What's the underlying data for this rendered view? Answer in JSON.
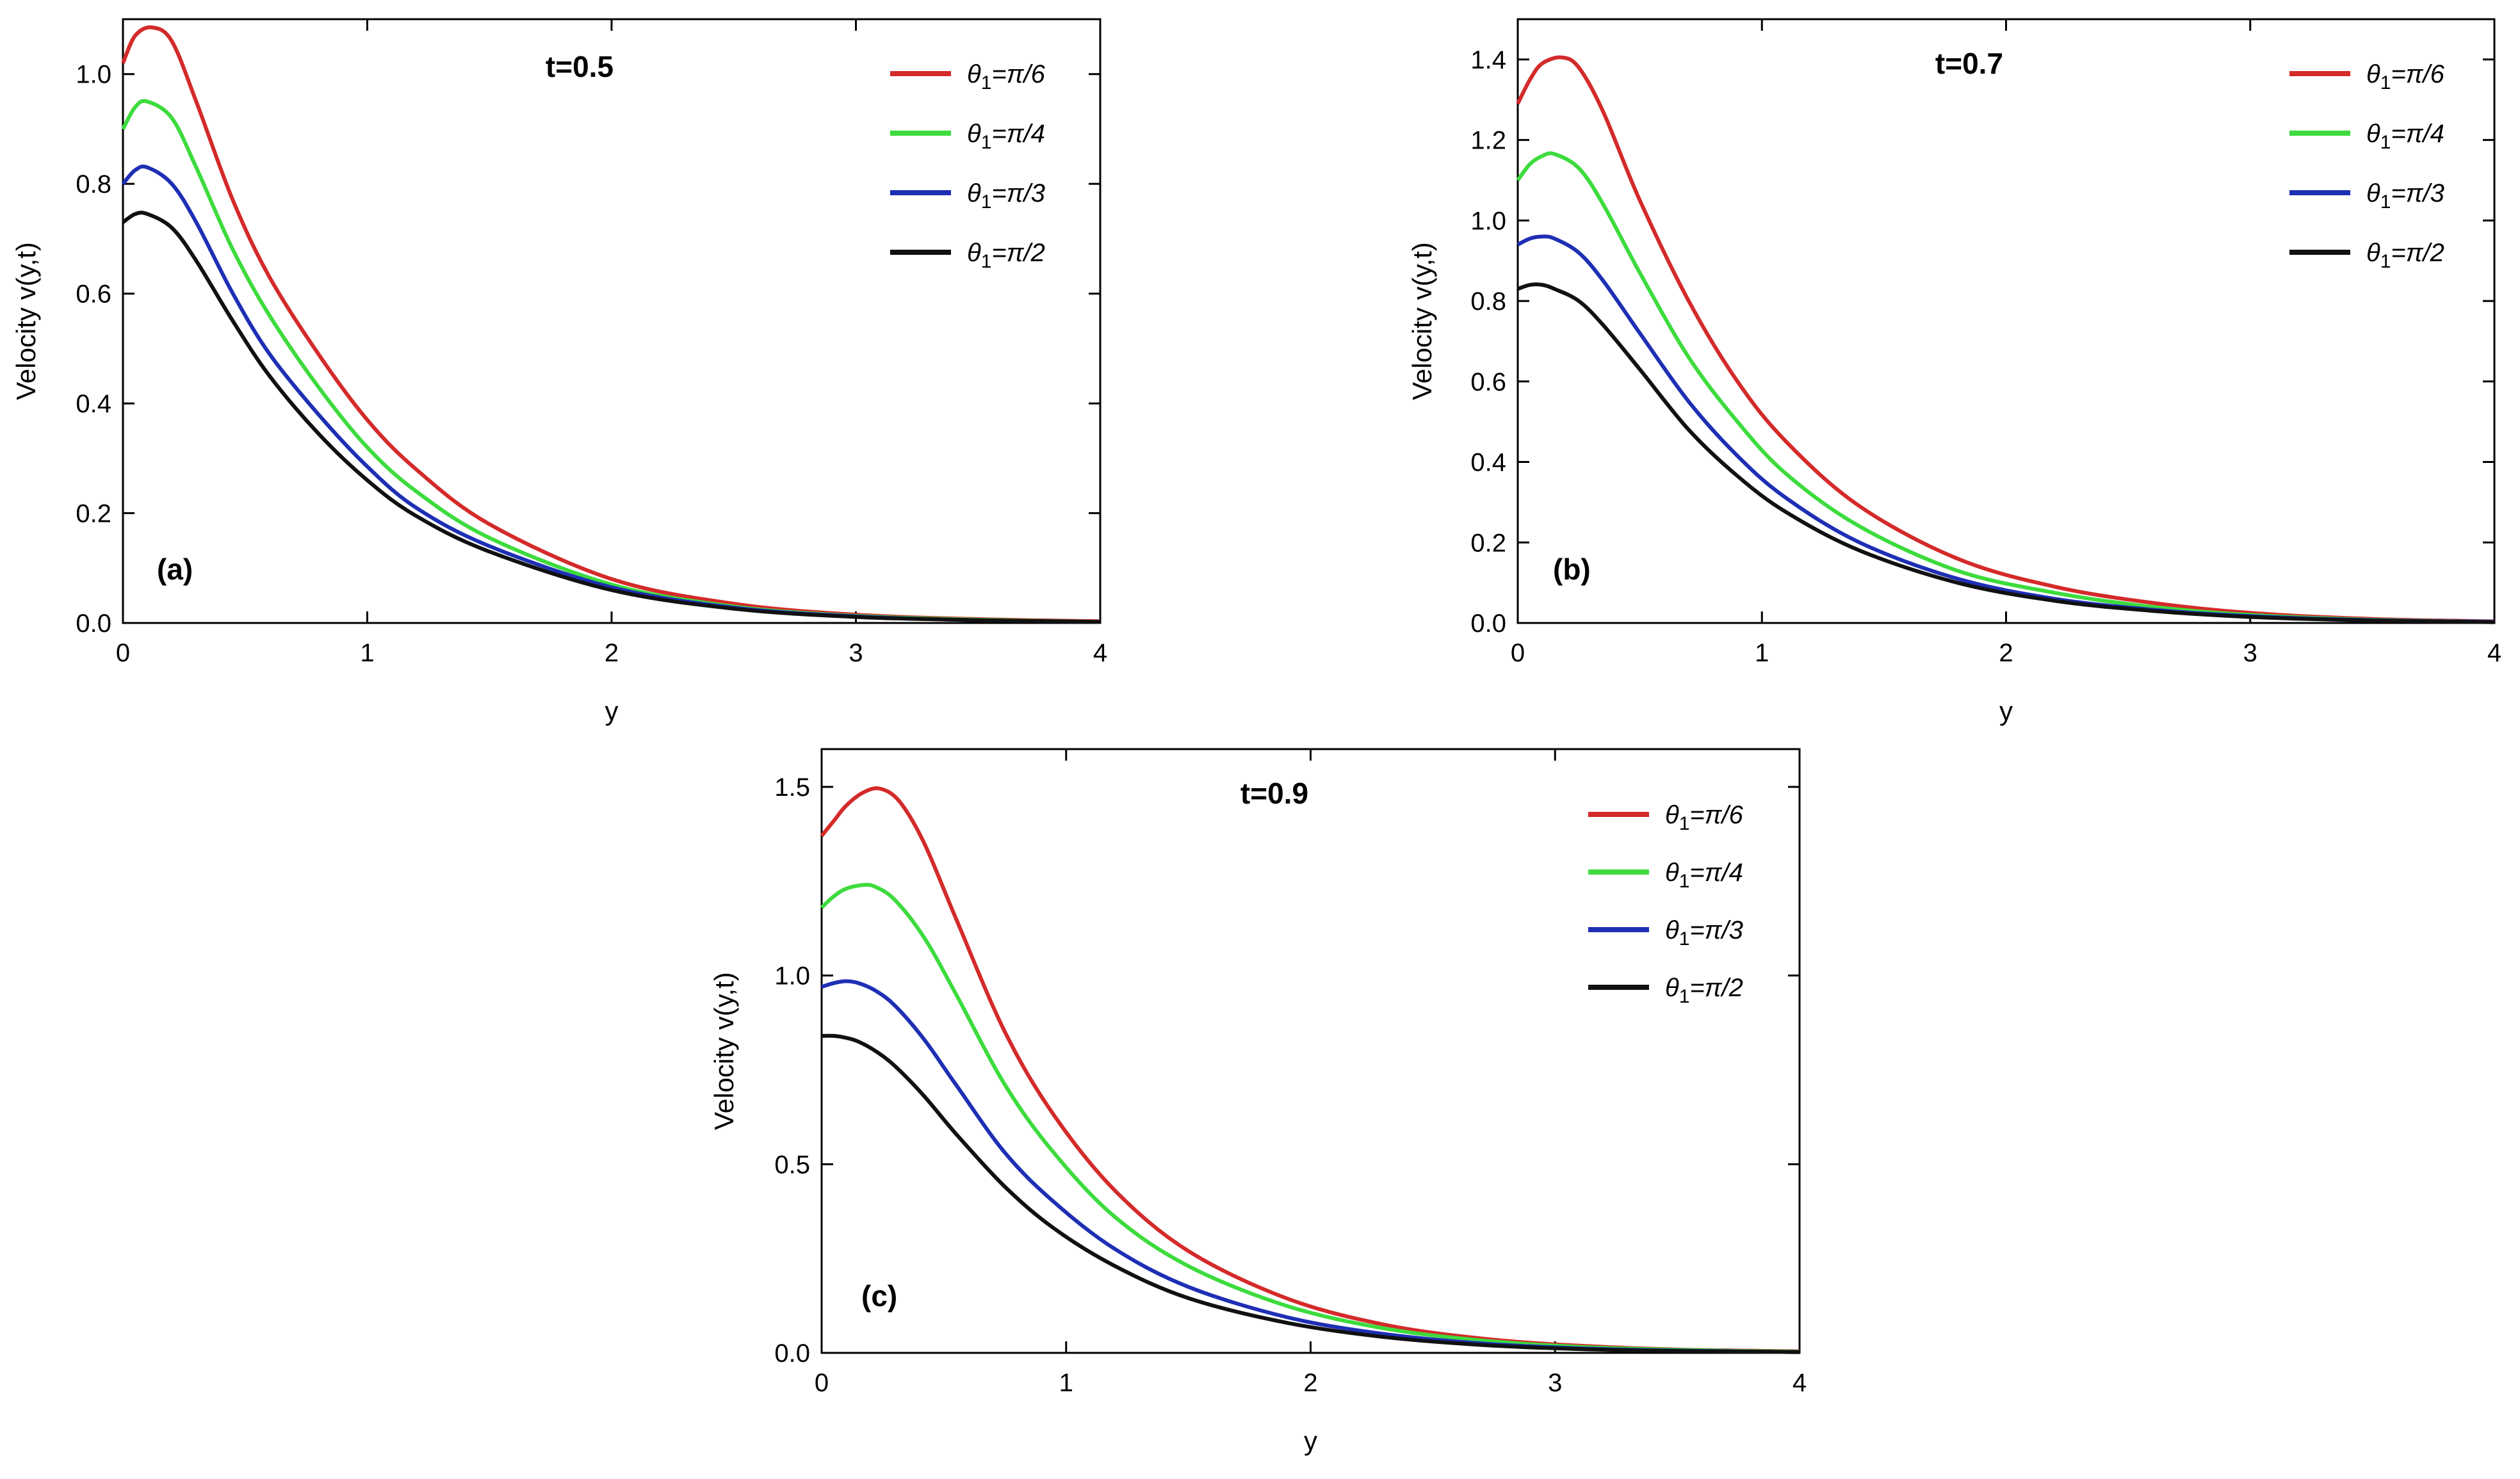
{
  "chart_data": [
    {
      "type": "line",
      "id": "a",
      "title": "t=0.5",
      "panel_label": "(a)",
      "xlabel": "y",
      "ylabel": "Velocity v(y,t)",
      "xlim": [
        0,
        4
      ],
      "ylim": [
        0,
        1.1
      ],
      "xticks": [
        0,
        1,
        2,
        3,
        4
      ],
      "xtick_labels": [
        "0",
        "1",
        "2",
        "3",
        "4"
      ],
      "yticks": [
        0,
        0.2,
        0.4,
        0.6,
        0.8,
        1.0
      ],
      "ytick_labels": [
        "0.0",
        "0.2",
        "0.4",
        "0.6",
        "0.8",
        "1.0"
      ],
      "legend_position": "top-right",
      "series": [
        {
          "name": "θ1=π/6",
          "legend_main": "θ",
          "legend_sub": "1",
          "legend_rest": "=π/6",
          "color": "#d42a2a",
          "x": [
            0,
            0.05,
            0.12,
            0.2,
            0.3,
            0.45,
            0.6,
            0.8,
            1.0,
            1.2,
            1.5,
            2.0,
            2.5,
            3.0,
            3.5,
            4.0
          ],
          "y": [
            1.02,
            1.07,
            1.085,
            1.06,
            0.95,
            0.77,
            0.63,
            0.49,
            0.37,
            0.28,
            0.18,
            0.08,
            0.035,
            0.015,
            0.007,
            0.003
          ]
        },
        {
          "name": "θ1=π/4",
          "legend_main": "θ",
          "legend_sub": "1",
          "legend_rest": "=π/4",
          "color": "#3ddb3d",
          "x": [
            0,
            0.05,
            0.1,
            0.2,
            0.3,
            0.45,
            0.6,
            0.8,
            1.0,
            1.2,
            1.5,
            2.0,
            2.5,
            3.0,
            3.5,
            4.0
          ],
          "y": [
            0.9,
            0.94,
            0.95,
            0.92,
            0.83,
            0.68,
            0.56,
            0.43,
            0.32,
            0.24,
            0.155,
            0.07,
            0.03,
            0.013,
            0.006,
            0.002
          ]
        },
        {
          "name": "θ1=π/3",
          "legend_main": "θ",
          "legend_sub": "1",
          "legend_rest": "=π/3",
          "color": "#1e2fb4",
          "x": [
            0,
            0.05,
            0.1,
            0.2,
            0.3,
            0.45,
            0.6,
            0.8,
            1.0,
            1.2,
            1.5,
            2.0,
            2.5,
            3.0,
            3.5,
            4.0
          ],
          "y": [
            0.8,
            0.825,
            0.83,
            0.8,
            0.73,
            0.6,
            0.49,
            0.38,
            0.285,
            0.21,
            0.14,
            0.065,
            0.028,
            0.012,
            0.005,
            0.002
          ]
        },
        {
          "name": "θ1=π/2",
          "legend_main": "θ",
          "legend_sub": "1",
          "legend_rest": "=π/2",
          "color": "#111111",
          "x": [
            0,
            0.05,
            0.1,
            0.2,
            0.3,
            0.45,
            0.6,
            0.8,
            1.0,
            1.2,
            1.5,
            2.0,
            2.5,
            3.0,
            3.5,
            4.0
          ],
          "y": [
            0.73,
            0.745,
            0.745,
            0.72,
            0.66,
            0.55,
            0.45,
            0.345,
            0.26,
            0.195,
            0.13,
            0.06,
            0.026,
            0.011,
            0.005,
            0.002
          ]
        }
      ]
    },
    {
      "type": "line",
      "id": "b",
      "title": "t=0.7",
      "panel_label": "(b)",
      "xlabel": "y",
      "ylabel": "Velocity v(y,t)",
      "xlim": [
        0,
        4
      ],
      "ylim": [
        0,
        1.5
      ],
      "xticks": [
        0,
        1,
        2,
        3,
        4
      ],
      "xtick_labels": [
        "0",
        "1",
        "2",
        "3",
        "4"
      ],
      "yticks": [
        0,
        0.2,
        0.4,
        0.6,
        0.8,
        1.0,
        1.2,
        1.4
      ],
      "ytick_labels": [
        "0.0",
        "0.2",
        "0.4",
        "0.6",
        "0.8",
        "1.0",
        "1.2",
        "1.4"
      ],
      "legend_position": "top-right",
      "series": [
        {
          "name": "θ1=π/6",
          "legend_main": "θ",
          "legend_sub": "1",
          "legend_rest": "=π/6",
          "color": "#d42a2a",
          "x": [
            0,
            0.05,
            0.1,
            0.18,
            0.25,
            0.35,
            0.5,
            0.7,
            0.9,
            1.1,
            1.4,
            1.8,
            2.2,
            2.6,
            3.0,
            3.5,
            4.0
          ],
          "y": [
            1.29,
            1.35,
            1.39,
            1.405,
            1.38,
            1.27,
            1.05,
            0.8,
            0.6,
            0.45,
            0.29,
            0.16,
            0.09,
            0.05,
            0.025,
            0.01,
            0.004
          ]
        },
        {
          "name": "θ1=π/4",
          "legend_main": "θ",
          "legend_sub": "1",
          "legend_rest": "=π/4",
          "color": "#3ddb3d",
          "x": [
            0,
            0.05,
            0.1,
            0.15,
            0.25,
            0.35,
            0.5,
            0.7,
            0.9,
            1.1,
            1.4,
            1.8,
            2.2,
            2.6,
            3.0,
            3.5,
            4.0
          ],
          "y": [
            1.1,
            1.14,
            1.16,
            1.165,
            1.13,
            1.04,
            0.87,
            0.66,
            0.5,
            0.37,
            0.24,
            0.13,
            0.075,
            0.04,
            0.02,
            0.008,
            0.003
          ]
        },
        {
          "name": "θ1=π/3",
          "legend_main": "θ",
          "legend_sub": "1",
          "legend_rest": "=π/3",
          "color": "#1e2fb4",
          "x": [
            0,
            0.05,
            0.1,
            0.15,
            0.25,
            0.35,
            0.5,
            0.7,
            0.9,
            1.1,
            1.4,
            1.8,
            2.2,
            2.6,
            3.0,
            3.5,
            4.0
          ],
          "y": [
            0.94,
            0.955,
            0.96,
            0.955,
            0.92,
            0.85,
            0.72,
            0.55,
            0.415,
            0.31,
            0.2,
            0.11,
            0.06,
            0.033,
            0.017,
            0.007,
            0.003
          ]
        },
        {
          "name": "θ1=π/2",
          "legend_main": "θ",
          "legend_sub": "1",
          "legend_rest": "=π/2",
          "color": "#111111",
          "x": [
            0,
            0.05,
            0.1,
            0.15,
            0.25,
            0.35,
            0.5,
            0.7,
            0.9,
            1.1,
            1.4,
            1.8,
            2.2,
            2.6,
            3.0,
            3.5,
            4.0
          ],
          "y": [
            0.83,
            0.84,
            0.84,
            0.83,
            0.8,
            0.74,
            0.63,
            0.48,
            0.365,
            0.275,
            0.18,
            0.1,
            0.055,
            0.03,
            0.015,
            0.006,
            0.002
          ]
        }
      ]
    },
    {
      "type": "line",
      "id": "c",
      "title": "t=0.9",
      "panel_label": "(c)",
      "xlabel": "y",
      "ylabel": "Velocity v(y,t)",
      "xlim": [
        0,
        4
      ],
      "ylim": [
        0,
        1.6
      ],
      "xticks": [
        0,
        1,
        2,
        3,
        4
      ],
      "xtick_labels": [
        "0",
        "1",
        "2",
        "3",
        "4"
      ],
      "yticks": [
        0,
        0.5,
        1.0,
        1.5
      ],
      "ytick_labels": [
        "0.0",
        "0.5",
        "1.0",
        "1.5"
      ],
      "legend_position": "top-right",
      "series": [
        {
          "name": "θ1=π/6",
          "legend_main": "θ",
          "legend_sub": "1",
          "legend_rest": "=π/6",
          "color": "#d42a2a",
          "x": [
            0,
            0.05,
            0.1,
            0.17,
            0.24,
            0.32,
            0.42,
            0.55,
            0.75,
            0.95,
            1.2,
            1.5,
            1.9,
            2.3,
            2.7,
            3.1,
            3.5,
            4.0
          ],
          "y": [
            1.37,
            1.41,
            1.45,
            1.485,
            1.495,
            1.46,
            1.35,
            1.15,
            0.85,
            0.63,
            0.43,
            0.27,
            0.145,
            0.075,
            0.038,
            0.019,
            0.009,
            0.004
          ]
        },
        {
          "name": "θ1=π/4",
          "legend_main": "θ",
          "legend_sub": "1",
          "legend_rest": "=π/4",
          "color": "#3ddb3d",
          "x": [
            0,
            0.05,
            0.1,
            0.17,
            0.22,
            0.3,
            0.42,
            0.55,
            0.75,
            0.95,
            1.2,
            1.5,
            1.9,
            2.3,
            2.7,
            3.1,
            3.5,
            4.0
          ],
          "y": [
            1.18,
            1.21,
            1.23,
            1.24,
            1.235,
            1.2,
            1.1,
            0.95,
            0.71,
            0.53,
            0.36,
            0.23,
            0.125,
            0.065,
            0.033,
            0.016,
            0.008,
            0.003
          ]
        },
        {
          "name": "θ1=π/3",
          "legend_main": "θ",
          "legend_sub": "1",
          "legend_rest": "=π/3",
          "color": "#1e2fb4",
          "x": [
            0,
            0.05,
            0.1,
            0.15,
            0.22,
            0.3,
            0.42,
            0.55,
            0.75,
            0.95,
            1.2,
            1.5,
            1.9,
            2.3,
            2.7,
            3.1,
            3.5,
            4.0
          ],
          "y": [
            0.97,
            0.98,
            0.985,
            0.98,
            0.96,
            0.92,
            0.83,
            0.71,
            0.53,
            0.4,
            0.275,
            0.175,
            0.095,
            0.05,
            0.025,
            0.012,
            0.006,
            0.002
          ]
        },
        {
          "name": "θ1=π/2",
          "legend_main": "θ",
          "legend_sub": "1",
          "legend_rest": "=π/2",
          "color": "#111111",
          "x": [
            0,
            0.05,
            0.1,
            0.15,
            0.22,
            0.3,
            0.42,
            0.55,
            0.75,
            0.95,
            1.2,
            1.5,
            1.9,
            2.3,
            2.7,
            3.1,
            3.5,
            4.0
          ],
          "y": [
            0.84,
            0.84,
            0.835,
            0.825,
            0.8,
            0.76,
            0.68,
            0.58,
            0.44,
            0.33,
            0.23,
            0.145,
            0.08,
            0.042,
            0.021,
            0.01,
            0.005,
            0.002
          ]
        }
      ]
    }
  ]
}
